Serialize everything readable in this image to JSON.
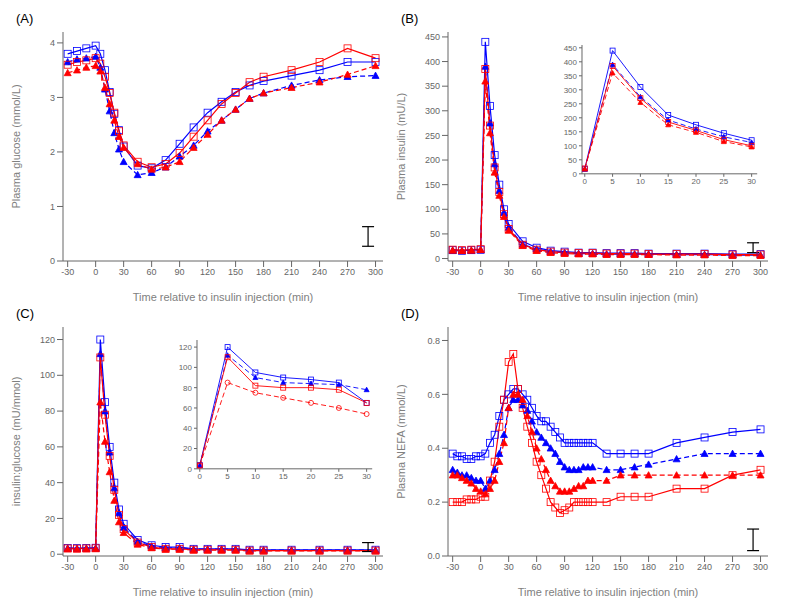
{
  "chart_data": [
    {
      "type": "line",
      "title": "(A)",
      "x_label": "Time relative to insulin injection (min)",
      "y_label": "Plasma glucose (mmol/L)",
      "x": [
        -30,
        -20,
        -10,
        0,
        5,
        10,
        15,
        20,
        25,
        30,
        45,
        60,
        75,
        90,
        105,
        120,
        135,
        150,
        165,
        180,
        210,
        240,
        270,
        300
      ],
      "xlim": [
        -35,
        308
      ],
      "xticks": [
        -30,
        0,
        30,
        60,
        90,
        120,
        150,
        180,
        210,
        240,
        270,
        300
      ],
      "ylim": [
        0,
        4.2
      ],
      "yticks": [
        0,
        1,
        2,
        3,
        4
      ],
      "grid": false,
      "series": [
        {
          "color": "#0000FF",
          "marker": "square_open",
          "line_style": "solid",
          "values": [
            3.8,
            3.85,
            3.9,
            3.95,
            3.8,
            3.5,
            3.1,
            2.7,
            2.4,
            2.1,
            1.75,
            1.7,
            1.85,
            2.15,
            2.45,
            2.72,
            2.92,
            3.1,
            3.22,
            3.3,
            3.4,
            3.5,
            3.65,
            3.65
          ]
        },
        {
          "color": "#0000FF",
          "marker": "triangle_filled",
          "line_style": "dashed",
          "values": [
            3.65,
            3.7,
            3.72,
            3.75,
            3.55,
            3.15,
            2.75,
            2.35,
            2.05,
            1.82,
            1.58,
            1.62,
            1.72,
            1.92,
            2.12,
            2.38,
            2.58,
            2.78,
            2.98,
            3.08,
            3.22,
            3.32,
            3.38,
            3.4
          ]
        },
        {
          "color": "#FF0000",
          "marker": "square_open",
          "line_style": "solid",
          "values": [
            3.6,
            3.65,
            3.68,
            3.72,
            3.62,
            3.38,
            3.08,
            2.72,
            2.38,
            2.12,
            1.82,
            1.72,
            1.78,
            1.98,
            2.28,
            2.58,
            2.88,
            3.08,
            3.28,
            3.38,
            3.5,
            3.65,
            3.9,
            3.72
          ]
        },
        {
          "color": "#FF0000",
          "marker": "triangle_filled",
          "line_style": "dashed",
          "values": [
            3.45,
            3.5,
            3.55,
            3.58,
            3.48,
            3.18,
            2.88,
            2.58,
            2.28,
            2.08,
            1.78,
            1.68,
            1.72,
            1.82,
            2.08,
            2.32,
            2.58,
            2.78,
            2.98,
            3.08,
            3.18,
            3.28,
            3.42,
            3.58
          ]
        }
      ],
      "sem_bar": {
        "x": 292,
        "y": 0.45,
        "err": 0.18
      }
    },
    {
      "type": "line",
      "title": "(B)",
      "x_label": "Time relative to insulin injection (min)",
      "y_label": "Plasma insulin (mU/L)",
      "x": [
        -30,
        -20,
        -10,
        0,
        5,
        10,
        15,
        20,
        25,
        30,
        45,
        60,
        75,
        90,
        105,
        120,
        135,
        150,
        165,
        180,
        210,
        240,
        270,
        300
      ],
      "xlim": [
        -35,
        308
      ],
      "xticks": [
        -30,
        0,
        30,
        60,
        90,
        120,
        150,
        180,
        210,
        240,
        270,
        300
      ],
      "ylim": [
        -5,
        460
      ],
      "yticks": [
        0,
        50,
        100,
        150,
        200,
        250,
        300,
        350,
        400,
        450
      ],
      "grid": false,
      "series": [
        {
          "color": "#0000FF",
          "marker": "square_open",
          "line_style": "solid",
          "values": [
            17,
            16,
            17,
            18,
            440,
            310,
            210,
            150,
            100,
            70,
            35,
            22,
            16,
            14,
            12,
            12,
            11,
            11,
            11,
            10,
            10,
            10,
            9,
            9
          ]
        },
        {
          "color": "#0000FF",
          "marker": "triangle_filled",
          "line_style": "dashed",
          "values": [
            16,
            15,
            16,
            17,
            390,
            275,
            192,
            138,
            93,
            63,
            29,
            19,
            14,
            12,
            10,
            10,
            9,
            9,
            9,
            9,
            8,
            8,
            7,
            7
          ]
        },
        {
          "color": "#FF0000",
          "marker": "square_open",
          "line_style": "solid",
          "values": [
            18,
            17,
            18,
            19,
            385,
            270,
            185,
            135,
            90,
            60,
            28,
            18,
            14,
            12,
            11,
            11,
            10,
            10,
            10,
            9,
            9,
            9,
            8,
            8
          ]
        },
        {
          "color": "#FF0000",
          "marker": "triangle_filled",
          "line_style": "dashed",
          "values": [
            17,
            16,
            17,
            18,
            360,
            255,
            175,
            128,
            85,
            57,
            26,
            16,
            12,
            10,
            9,
            9,
            8,
            8,
            8,
            8,
            7,
            7,
            6,
            6
          ]
        }
      ],
      "sem_bar": {
        "x": 292,
        "y": 22,
        "err": 10
      }
    },
    {
      "type": "line",
      "x": [
        0,
        5,
        10,
        15,
        20,
        25,
        30
      ],
      "xlim": [
        -0.5,
        31
      ],
      "xticks": [
        0,
        5,
        10,
        15,
        20,
        25,
        30
      ],
      "ylim": [
        0,
        460
      ],
      "yticks": [
        0,
        50,
        100,
        150,
        200,
        250,
        300,
        350,
        400,
        450
      ],
      "grid": false,
      "series": [
        {
          "color": "#0000FF",
          "marker": "square_open",
          "line_style": "solid",
          "values": [
            18,
            440,
            310,
            210,
            175,
            145,
            120
          ]
        },
        {
          "color": "#0000FF",
          "marker": "triangle_filled",
          "line_style": "dashed",
          "values": [
            17,
            390,
            275,
            192,
            160,
            132,
            112
          ]
        },
        {
          "color": "#FF0000",
          "marker": "square_open",
          "line_style": "solid",
          "values": [
            19,
            385,
            270,
            185,
            155,
            122,
            100
          ]
        },
        {
          "color": "#FF0000",
          "marker": "triangle_filled",
          "line_style": "dashed",
          "values": [
            18,
            360,
            255,
            175,
            148,
            115,
            96
          ]
        }
      ]
    },
    {
      "type": "line",
      "title": "(C)",
      "x_label": "Time relative to insulin injection (min)",
      "y_label": "insulin:glucose (mU/mmol)",
      "x": [
        -30,
        -20,
        -10,
        0,
        5,
        10,
        15,
        20,
        25,
        30,
        45,
        60,
        75,
        90,
        105,
        120,
        135,
        150,
        165,
        180,
        210,
        240,
        270,
        300
      ],
      "xlim": [
        -35,
        308
      ],
      "xticks": [
        -30,
        0,
        30,
        60,
        90,
        120,
        150,
        180,
        210,
        240,
        270,
        300
      ],
      "ylim": [
        -1,
        127
      ],
      "yticks": [
        0,
        20,
        40,
        60,
        80,
        100,
        120
      ],
      "grid": false,
      "series": [
        {
          "color": "#0000FF",
          "marker": "square_open",
          "line_style": "solid",
          "values": [
            3.5,
            3.4,
            3.5,
            3.6,
            120,
            85,
            60,
            40,
            25,
            17,
            8,
            5,
            4,
            4,
            3,
            3,
            3,
            3,
            2.5,
            2.5,
            2.5,
            2.5,
            2.5,
            2.5
          ]
        },
        {
          "color": "#0000FF",
          "marker": "triangle_filled",
          "line_style": "dashed",
          "values": [
            3.3,
            3.2,
            3.3,
            3.4,
            112,
            80,
            57,
            37,
            23,
            15,
            7,
            4.5,
            3.5,
            3.5,
            2.8,
            2.8,
            2.8,
            2.8,
            2.3,
            2.3,
            2.3,
            2.3,
            2.3,
            2.3
          ]
        },
        {
          "color": "#FF0000",
          "marker": "square_open",
          "line_style": "solid",
          "values": [
            3.2,
            3.1,
            3.2,
            3.3,
            110,
            78,
            55,
            36,
            22,
            14,
            6.5,
            4,
            3,
            3,
            2.5,
            2.5,
            2.5,
            2.5,
            2,
            2,
            2,
            2,
            2,
            2
          ]
        },
        {
          "color": "#FF0000",
          "marker": "triangle_filled",
          "line_style": "dashed",
          "values": [
            3.0,
            2.9,
            3.0,
            3.1,
            85,
            63,
            46,
            30,
            18,
            12,
            5.5,
            3.5,
            2.8,
            2.8,
            2.3,
            2.3,
            2.3,
            2.3,
            1.8,
            1.8,
            1.8,
            1.8,
            1.8,
            1.8
          ]
        }
      ],
      "sem_bar": {
        "x": 292,
        "y": 4,
        "err": 2.5
      }
    },
    {
      "type": "line",
      "x": [
        0,
        5,
        10,
        15,
        20,
        25,
        30
      ],
      "xlim": [
        -0.5,
        31
      ],
      "xticks": [
        0,
        5,
        10,
        15,
        20,
        25,
        30
      ],
      "ylim": [
        0,
        127
      ],
      "yticks": [
        0,
        20,
        40,
        60,
        80,
        100,
        120
      ],
      "grid": false,
      "series": [
        {
          "color": "#0000FF",
          "marker": "square_open",
          "line_style": "solid",
          "values": [
            3.6,
            120,
            95,
            90,
            88,
            85,
            65
          ]
        },
        {
          "color": "#0000FF",
          "marker": "triangle_filled",
          "line_style": "dashed",
          "values": [
            3.4,
            112,
            90,
            85,
            84,
            83,
            78
          ]
        },
        {
          "color": "#FF0000",
          "marker": "square_open",
          "line_style": "solid",
          "values": [
            3.3,
            110,
            82,
            80,
            80,
            78,
            65
          ]
        },
        {
          "color": "#FF0000",
          "marker": "circle_open",
          "line_style": "dashed",
          "values": [
            3.1,
            85,
            75,
            70,
            65,
            60,
            54
          ]
        }
      ]
    },
    {
      "type": "line",
      "title": "(D)",
      "x_label": "Time relative to insulin injection (min)",
      "y_label": "Plasma NEFA (mmol/L)",
      "x": [
        -30,
        -25,
        -20,
        -15,
        -10,
        -5,
        0,
        5,
        10,
        15,
        20,
        25,
        30,
        35,
        40,
        45,
        50,
        55,
        60,
        65,
        70,
        75,
        80,
        85,
        90,
        95,
        100,
        105,
        110,
        115,
        120,
        135,
        150,
        165,
        180,
        210,
        240,
        270,
        300
      ],
      "xlim": [
        -35,
        308
      ],
      "xticks": [
        -30,
        0,
        30,
        60,
        90,
        120,
        150,
        180,
        210,
        240,
        270,
        300
      ],
      "ylim": [
        0,
        0.85
      ],
      "yticks": [
        {
          "value": 0,
          "label": "0.0"
        },
        0.2,
        0.4,
        0.6,
        0.8
      ],
      "grid": false,
      "series": [
        {
          "color": "#0000FF",
          "marker": "square_open",
          "line_style": "solid",
          "values": [
            0.38,
            0.37,
            0.37,
            0.36,
            0.36,
            0.37,
            0.37,
            0.38,
            0.42,
            0.45,
            0.52,
            0.58,
            0.6,
            0.62,
            0.62,
            0.6,
            0.58,
            0.55,
            0.52,
            0.5,
            0.5,
            0.48,
            0.46,
            0.44,
            0.42,
            0.42,
            0.42,
            0.42,
            0.42,
            0.42,
            0.42,
            0.38,
            0.38,
            0.38,
            0.38,
            0.42,
            0.44,
            0.46,
            0.47
          ]
        },
        {
          "color": "#0000FF",
          "marker": "triangle_filled",
          "line_style": "dashed",
          "values": [
            0.32,
            0.31,
            0.3,
            0.3,
            0.29,
            0.28,
            0.28,
            0.25,
            0.28,
            0.32,
            0.38,
            0.45,
            0.55,
            0.58,
            0.58,
            0.56,
            0.54,
            0.5,
            0.46,
            0.44,
            0.42,
            0.4,
            0.38,
            0.35,
            0.33,
            0.32,
            0.32,
            0.32,
            0.33,
            0.33,
            0.33,
            0.32,
            0.32,
            0.33,
            0.34,
            0.36,
            0.38,
            0.38,
            0.38
          ]
        },
        {
          "color": "#FF0000",
          "marker": "square_open",
          "line_style": "solid",
          "values": [
            0.2,
            0.2,
            0.2,
            0.21,
            0.21,
            0.21,
            0.22,
            0.22,
            0.28,
            0.35,
            0.48,
            0.58,
            0.72,
            0.75,
            0.62,
            0.55,
            0.48,
            0.42,
            0.35,
            0.3,
            0.25,
            0.2,
            0.18,
            0.16,
            0.17,
            0.18,
            0.2,
            0.2,
            0.2,
            0.2,
            0.2,
            0.2,
            0.22,
            0.22,
            0.22,
            0.25,
            0.25,
            0.3,
            0.32
          ]
        },
        {
          "color": "#FF0000",
          "marker": "triangle_filled",
          "line_style": "dashed",
          "values": [
            0.3,
            0.3,
            0.29,
            0.28,
            0.27,
            0.25,
            0.24,
            0.23,
            0.25,
            0.28,
            0.35,
            0.42,
            0.55,
            0.6,
            0.6,
            0.58,
            0.52,
            0.46,
            0.4,
            0.36,
            0.32,
            0.28,
            0.26,
            0.24,
            0.24,
            0.24,
            0.25,
            0.26,
            0.26,
            0.28,
            0.28,
            0.28,
            0.3,
            0.3,
            0.3,
            0.3,
            0.3,
            0.3,
            0.3
          ]
        }
      ],
      "sem_bar": {
        "x": 292,
        "y": 0.06,
        "err": 0.04
      }
    }
  ]
}
